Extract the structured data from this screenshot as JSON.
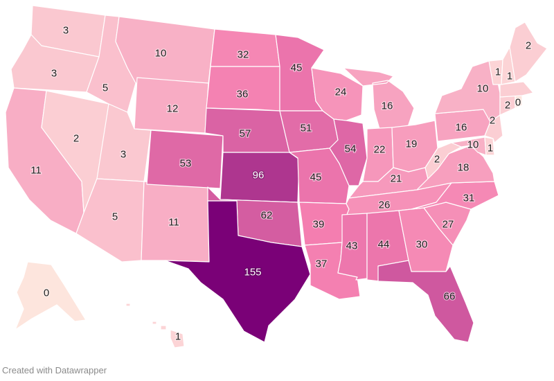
{
  "credit": "Created with Datawrapper",
  "color_scale": {
    "low": "#fde5dd",
    "mid": "#f47eb0",
    "high": "#7a0177",
    "min": 0,
    "max": 155
  },
  "states": [
    {
      "code": "WA",
      "value": 3
    },
    {
      "code": "OR",
      "value": 3
    },
    {
      "code": "CA",
      "value": 11
    },
    {
      "code": "NV",
      "value": 2
    },
    {
      "code": "ID",
      "value": 5
    },
    {
      "code": "MT",
      "value": 10
    },
    {
      "code": "WY",
      "value": 12
    },
    {
      "code": "UT",
      "value": 3
    },
    {
      "code": "AZ",
      "value": 5
    },
    {
      "code": "NM",
      "value": 11
    },
    {
      "code": "CO",
      "value": 53
    },
    {
      "code": "ND",
      "value": 32
    },
    {
      "code": "SD",
      "value": 36
    },
    {
      "code": "NE",
      "value": 57
    },
    {
      "code": "KS",
      "value": 96
    },
    {
      "code": "OK",
      "value": 62
    },
    {
      "code": "TX",
      "value": 155
    },
    {
      "code": "MN",
      "value": 45
    },
    {
      "code": "IA",
      "value": 51
    },
    {
      "code": "MO",
      "value": 45
    },
    {
      "code": "AR",
      "value": 39
    },
    {
      "code": "LA",
      "value": 37
    },
    {
      "code": "WI",
      "value": 24
    },
    {
      "code": "IL",
      "value": 54
    },
    {
      "code": "MI",
      "value": 16
    },
    {
      "code": "IN",
      "value": 22
    },
    {
      "code": "OH",
      "value": 19
    },
    {
      "code": "KY",
      "value": 21
    },
    {
      "code": "TN",
      "value": 26
    },
    {
      "code": "MS",
      "value": 43
    },
    {
      "code": "AL",
      "value": 44
    },
    {
      "code": "GA",
      "value": 30
    },
    {
      "code": "FL",
      "value": 66
    },
    {
      "code": "SC",
      "value": 27
    },
    {
      "code": "NC",
      "value": 31
    },
    {
      "code": "VA",
      "value": 18
    },
    {
      "code": "WV",
      "value": 2
    },
    {
      "code": "PA",
      "value": 16
    },
    {
      "code": "NY",
      "value": 10
    },
    {
      "code": "MD",
      "value": 10
    },
    {
      "code": "DE",
      "value": 1
    },
    {
      "code": "NJ",
      "value": 2
    },
    {
      "code": "CT",
      "value": 2
    },
    {
      "code": "RI",
      "value": 0
    },
    {
      "code": "MA",
      "value": 2
    },
    {
      "code": "VT",
      "value": 1
    },
    {
      "code": "NH",
      "value": 1
    },
    {
      "code": "ME",
      "value": 2
    },
    {
      "code": "AK",
      "value": 0
    },
    {
      "code": "HI",
      "value": 1
    }
  ]
}
